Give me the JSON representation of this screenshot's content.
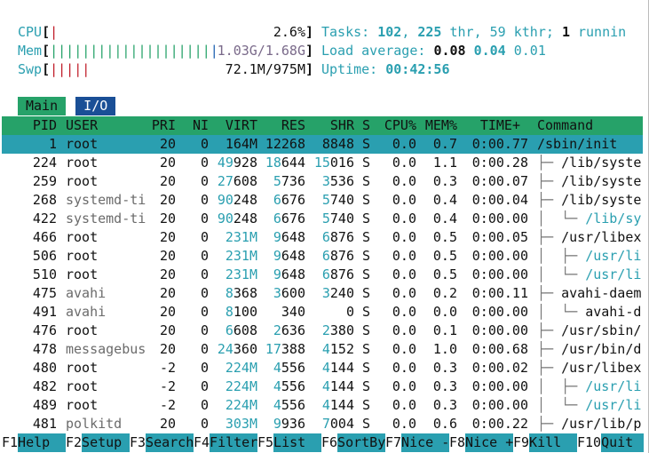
{
  "meters": {
    "left": [
      {
        "label": "CPU",
        "open": "[",
        "bar": [
          {
            "text": "|",
            "color": "#c01c28"
          }
        ],
        "value": "2.6%",
        "close": "]"
      },
      {
        "label": "Mem",
        "open": "[",
        "bar": [
          {
            "text": "||||||||||||||||||||",
            "color": "#26a269"
          },
          {
            "text": "|",
            "color": "#1c5fb0"
          }
        ],
        "value": "1.03G/1.68G",
        "close": "]"
      },
      {
        "label": "Swp",
        "open": "[",
        "bar": [
          {
            "text": "|||||",
            "color": "#c01c28"
          }
        ],
        "value": "72.1M/975M",
        "close": "]"
      }
    ],
    "right": [
      [
        {
          "text": "Tasks: ",
          "style": "c"
        },
        {
          "text": "102",
          "style": "cb"
        },
        {
          "text": ", ",
          "style": "c"
        },
        {
          "text": "225",
          "style": "cb"
        },
        {
          "text": " thr, ",
          "style": "c"
        },
        {
          "text": "59",
          "style": "c"
        },
        {
          "text": " kthr; ",
          "style": "c"
        },
        {
          "text": "1",
          "style": "b"
        },
        {
          "text": " runnin",
          "style": "c"
        }
      ],
      [
        {
          "text": "Load average: ",
          "style": "c"
        },
        {
          "text": "0.08",
          "style": "b"
        },
        {
          "text": " ",
          "style": "c"
        },
        {
          "text": "0.04",
          "style": "cb"
        },
        {
          "text": " ",
          "style": "c"
        },
        {
          "text": "0.01",
          "style": "c"
        }
      ],
      [
        {
          "text": "Uptime: ",
          "style": "c"
        },
        {
          "text": "00:42:56",
          "style": "cb"
        }
      ]
    ]
  },
  "tabs": [
    "Main",
    "I/O"
  ],
  "columns": [
    "PID",
    "USER",
    "PRI",
    "NI",
    "VIRT",
    "RES",
    "SHR",
    "S",
    "CPU%",
    "MEM%",
    "TIME+",
    "Command"
  ],
  "rows": [
    {
      "cells": [
        "1",
        "root",
        "20",
        "0",
        "164M",
        "12268",
        "8848",
        "S",
        "0.0",
        "0.7",
        "0:00.77"
      ],
      "tree": "",
      "command": "/sbin/init",
      "selected": true
    },
    {
      "cells": [
        "224",
        "root",
        "20",
        "0",
        "49928",
        "18644",
        "15016",
        "S",
        "0.0",
        "1.1",
        "0:00.28"
      ],
      "tree": "├─ ",
      "command": "/lib/syste"
    },
    {
      "cells": [
        "259",
        "root",
        "20",
        "0",
        "27608",
        "5736",
        "3536",
        "S",
        "0.0",
        "0.3",
        "0:00.07"
      ],
      "tree": "├─ ",
      "command": "/lib/syste"
    },
    {
      "cells": [
        "268",
        "systemd-ti",
        "20",
        "0",
        "90248",
        "6676",
        "5740",
        "S",
        "0.0",
        "0.4",
        "0:00.04"
      ],
      "tree": "├─ ",
      "command": "/lib/syste",
      "dim_user": true
    },
    {
      "cells": [
        "422",
        "systemd-ti",
        "20",
        "0",
        "90248",
        "6676",
        "5740",
        "S",
        "0.0",
        "0.4",
        "0:00.00"
      ],
      "tree": "│  └─ ",
      "command": "/lib/sy",
      "dim_user": true,
      "thread": true
    },
    {
      "cells": [
        "466",
        "root",
        "20",
        "0",
        "231M",
        "9648",
        "6876",
        "S",
        "0.0",
        "0.5",
        "0:00.05"
      ],
      "tree": "├─ ",
      "command": "/usr/libex"
    },
    {
      "cells": [
        "506",
        "root",
        "20",
        "0",
        "231M",
        "9648",
        "6876",
        "S",
        "0.0",
        "0.5",
        "0:00.00"
      ],
      "tree": "│  ├─ ",
      "command": "/usr/li",
      "thread": true
    },
    {
      "cells": [
        "510",
        "root",
        "20",
        "0",
        "231M",
        "9648",
        "6876",
        "S",
        "0.0",
        "0.5",
        "0:00.00"
      ],
      "tree": "│  └─ ",
      "command": "/usr/li",
      "thread": true
    },
    {
      "cells": [
        "475",
        "avahi",
        "20",
        "0",
        "8368",
        "3600",
        "3240",
        "S",
        "0.0",
        "0.2",
        "0:00.11"
      ],
      "tree": "├─ ",
      "command": "avahi-daem",
      "dim_user": true
    },
    {
      "cells": [
        "491",
        "avahi",
        "20",
        "0",
        "8100",
        "340",
        "0",
        "S",
        "0.0",
        "0.0",
        "0:00.00"
      ],
      "tree": "│  └─ ",
      "command": "avahi-d",
      "dim_user": true
    },
    {
      "cells": [
        "476",
        "root",
        "20",
        "0",
        "6608",
        "2636",
        "2380",
        "S",
        "0.0",
        "0.1",
        "0:00.00"
      ],
      "tree": "├─ ",
      "command": "/usr/sbin/"
    },
    {
      "cells": [
        "478",
        "messagebus",
        "20",
        "0",
        "24360",
        "17388",
        "4152",
        "S",
        "0.0",
        "1.0",
        "0:00.68"
      ],
      "tree": "├─ ",
      "command": "/usr/bin/d",
      "dim_user": true
    },
    {
      "cells": [
        "480",
        "root",
        "-2",
        "0",
        "224M",
        "4556",
        "4144",
        "S",
        "0.0",
        "0.3",
        "0:00.02"
      ],
      "tree": "├─ ",
      "command": "/usr/libex"
    },
    {
      "cells": [
        "482",
        "root",
        "-2",
        "0",
        "224M",
        "4556",
        "4144",
        "S",
        "0.0",
        "0.3",
        "0:00.00"
      ],
      "tree": "│  ├─ ",
      "command": "/usr/li",
      "thread": true
    },
    {
      "cells": [
        "489",
        "root",
        "-2",
        "0",
        "224M",
        "4556",
        "4144",
        "S",
        "0.0",
        "0.3",
        "0:00.00"
      ],
      "tree": "│  └─ ",
      "command": "/usr/li",
      "thread": true
    },
    {
      "cells": [
        "481",
        "polkitd",
        "20",
        "0",
        "303M",
        "9936",
        "7004",
        "S",
        "0.0",
        "0.6",
        "0:00.22"
      ],
      "tree": "├─ ",
      "command": "/usr/lib/p",
      "dim_user": true
    }
  ],
  "function_keys": [
    {
      "key": "F1",
      "label": "Help"
    },
    {
      "key": "F2",
      "label": "Setup"
    },
    {
      "key": "F3",
      "label": "Search"
    },
    {
      "key": "F4",
      "label": "Filter"
    },
    {
      "key": "F5",
      "label": "List"
    },
    {
      "key": "F6",
      "label": "SortBy"
    },
    {
      "key": "F7",
      "label": "Nice -"
    },
    {
      "key": "F8",
      "label": "Nice +"
    },
    {
      "key": "F9",
      "label": "Kill"
    },
    {
      "key": "F10",
      "label": "Quit"
    }
  ]
}
